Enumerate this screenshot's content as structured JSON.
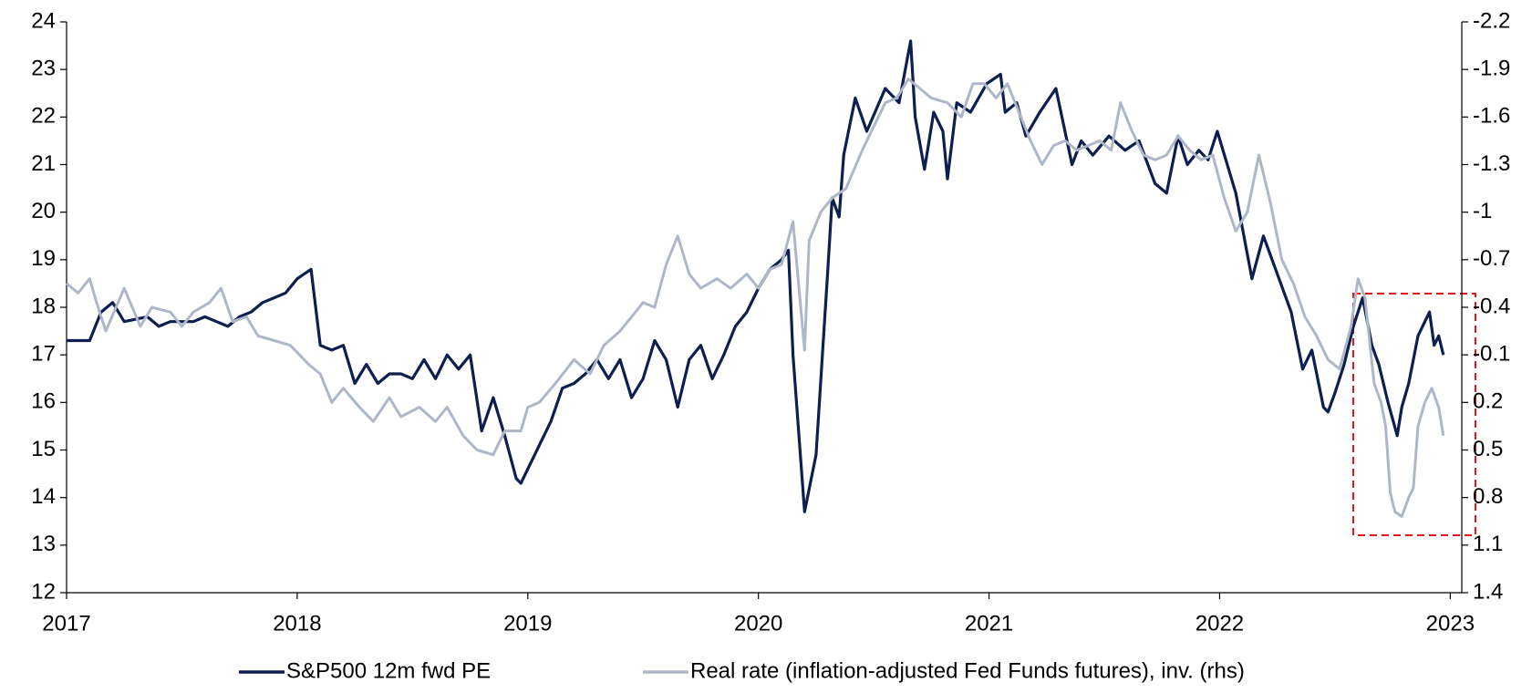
{
  "chart_data": {
    "type": "line",
    "xlim": [
      2017,
      2023.05
    ],
    "xticks": [
      2017,
      2018,
      2019,
      2020,
      2021,
      2022,
      2023
    ],
    "ylim": [
      12,
      24
    ],
    "yticks": [
      12,
      13,
      14,
      15,
      16,
      17,
      18,
      19,
      20,
      21,
      22,
      23,
      24
    ],
    "y2lim": [
      1.4,
      -2.2
    ],
    "y2ticks": [
      1.4,
      1.1,
      0.8,
      0.5,
      0.2,
      -0.1,
      -0.4,
      -0.7,
      -1.0,
      -1.3,
      -1.6,
      -1.9,
      -2.2
    ],
    "series": [
      {
        "name": "S&P500 12m fwd PE",
        "color": "#0c1f4f",
        "x": [
          2017.0,
          2017.1,
          2017.15,
          2017.2,
          2017.25,
          2017.35,
          2017.4,
          2017.45,
          2017.5,
          2017.55,
          2017.6,
          2017.65,
          2017.7,
          2017.75,
          2017.8,
          2017.85,
          2017.9,
          2017.95,
          2018.0,
          2018.06,
          2018.1,
          2018.15,
          2018.2,
          2018.25,
          2018.3,
          2018.35,
          2018.4,
          2018.45,
          2018.5,
          2018.55,
          2018.6,
          2018.65,
          2018.7,
          2018.75,
          2018.8,
          2018.85,
          2018.9,
          2018.95,
          2018.97,
          2019.05,
          2019.1,
          2019.15,
          2019.2,
          2019.25,
          2019.3,
          2019.35,
          2019.4,
          2019.45,
          2019.5,
          2019.55,
          2019.6,
          2019.65,
          2019.7,
          2019.75,
          2019.8,
          2019.85,
          2019.9,
          2019.95,
          2020.0,
          2020.05,
          2020.1,
          2020.13,
          2020.15,
          2020.2,
          2020.25,
          2020.3,
          2020.32,
          2020.35,
          2020.37,
          2020.42,
          2020.47,
          2020.55,
          2020.61,
          2020.66,
          2020.68,
          2020.72,
          2020.76,
          2020.8,
          2020.82,
          2020.86,
          2020.92,
          2020.99,
          2021.05,
          2021.07,
          2021.12,
          2021.16,
          2021.22,
          2021.29,
          2021.36,
          2021.4,
          2021.45,
          2021.52,
          2021.59,
          2021.65,
          2021.72,
          2021.77,
          2021.82,
          2021.86,
          2021.91,
          2021.95,
          2021.99,
          2022.07,
          2022.14,
          2022.19,
          2022.31,
          2022.36,
          2022.4,
          2022.45,
          2022.47,
          2022.5,
          2022.54,
          2022.58,
          2022.62,
          2022.66,
          2022.69,
          2022.73,
          2022.77,
          2022.79,
          2022.82,
          2022.86,
          2022.91,
          2022.93,
          2022.95,
          2022.97
        ],
        "values": [
          17.3,
          17.3,
          17.9,
          18.1,
          17.7,
          17.8,
          17.6,
          17.7,
          17.7,
          17.7,
          17.8,
          17.7,
          17.6,
          17.8,
          17.9,
          18.1,
          18.2,
          18.3,
          18.6,
          18.8,
          17.2,
          17.1,
          17.2,
          16.4,
          16.8,
          16.4,
          16.6,
          16.6,
          16.5,
          16.9,
          16.5,
          17.0,
          16.7,
          17.0,
          15.4,
          16.1,
          15.3,
          14.4,
          14.3,
          15.1,
          15.6,
          16.3,
          16.4,
          16.6,
          16.9,
          16.5,
          16.9,
          16.1,
          16.5,
          17.3,
          16.9,
          15.9,
          16.9,
          17.2,
          16.5,
          17.0,
          17.6,
          17.9,
          18.4,
          18.8,
          19.0,
          19.2,
          17.0,
          13.7,
          14.9,
          18.7,
          20.3,
          19.9,
          21.2,
          22.4,
          21.7,
          22.6,
          22.3,
          23.6,
          22.0,
          20.9,
          22.1,
          21.7,
          20.7,
          22.3,
          22.1,
          22.7,
          22.9,
          22.1,
          22.3,
          21.6,
          22.1,
          22.6,
          21.0,
          21.5,
          21.2,
          21.6,
          21.3,
          21.5,
          20.6,
          20.4,
          21.6,
          21.0,
          21.3,
          21.1,
          21.7,
          20.4,
          18.6,
          19.5,
          17.9,
          16.7,
          17.1,
          15.9,
          15.8,
          16.2,
          16.8,
          17.6,
          18.2,
          17.2,
          16.8,
          16.0,
          15.3,
          15.9,
          16.4,
          17.4,
          17.9,
          17.2,
          17.4,
          17.0
        ]
      },
      {
        "name": "Real rate (inflation-adjusted Fed Funds futures), inv. (rhs)",
        "color": "#aeb7c8",
        "axis": "y2",
        "x": [
          2017.0,
          2017.05,
          2017.1,
          2017.13,
          2017.17,
          2017.25,
          2017.32,
          2017.37,
          2017.45,
          2017.5,
          2017.55,
          2017.62,
          2017.67,
          2017.72,
          2017.78,
          2017.83,
          2017.9,
          2017.97,
          2018.05,
          2018.1,
          2018.15,
          2018.2,
          2018.27,
          2018.33,
          2018.4,
          2018.45,
          2018.53,
          2018.6,
          2018.65,
          2018.72,
          2018.78,
          2018.85,
          2018.9,
          2018.97,
          2019.0,
          2019.05,
          2019.12,
          2019.2,
          2019.27,
          2019.33,
          2019.4,
          2019.45,
          2019.5,
          2019.55,
          2019.6,
          2019.65,
          2019.7,
          2019.75,
          2019.82,
          2019.88,
          2019.95,
          2020.0,
          2020.05,
          2020.1,
          2020.15,
          2020.2,
          2020.22,
          2020.27,
          2020.32,
          2020.38,
          2020.45,
          2020.5,
          2020.55,
          2020.6,
          2020.65,
          2020.7,
          2020.75,
          2020.82,
          2020.88,
          2020.93,
          2020.98,
          2021.03,
          2021.08,
          2021.13,
          2021.18,
          2021.23,
          2021.28,
          2021.33,
          2021.38,
          2021.43,
          2021.48,
          2021.53,
          2021.57,
          2021.62,
          2021.67,
          2021.72,
          2021.77,
          2021.82,
          2021.87,
          2021.92,
          2021.97,
          2022.02,
          2022.07,
          2022.12,
          2022.17,
          2022.22,
          2022.27,
          2022.32,
          2022.37,
          2022.42,
          2022.47,
          2022.52,
          2022.57,
          2022.6,
          2022.63,
          2022.67,
          2022.7,
          2022.72,
          2022.74,
          2022.76,
          2022.79,
          2022.82,
          2022.84,
          2022.86,
          2022.89,
          2022.92,
          2022.95,
          2022.97
        ],
        "values": [
          -0.55,
          -0.49,
          -0.58,
          -0.43,
          -0.25,
          -0.52,
          -0.28,
          -0.4,
          -0.37,
          -0.28,
          -0.37,
          -0.43,
          -0.52,
          -0.31,
          -0.34,
          -0.22,
          -0.19,
          -0.16,
          -0.04,
          0.02,
          0.2,
          0.11,
          0.23,
          0.32,
          0.17,
          0.29,
          0.23,
          0.32,
          0.23,
          0.41,
          0.5,
          0.53,
          0.38,
          0.38,
          0.23,
          0.2,
          0.08,
          -0.07,
          0.02,
          -0.16,
          -0.25,
          -0.34,
          -0.43,
          -0.4,
          -0.67,
          -0.85,
          -0.61,
          -0.52,
          -0.58,
          -0.52,
          -0.61,
          -0.52,
          -0.64,
          -0.67,
          -0.94,
          -0.13,
          -0.82,
          -1.0,
          -1.09,
          -1.15,
          -1.39,
          -1.54,
          -1.69,
          -1.72,
          -1.84,
          -1.78,
          -1.72,
          -1.69,
          -1.6,
          -1.81,
          -1.81,
          -1.72,
          -1.81,
          -1.63,
          -1.45,
          -1.3,
          -1.42,
          -1.45,
          -1.39,
          -1.42,
          -1.45,
          -1.39,
          -1.69,
          -1.51,
          -1.36,
          -1.33,
          -1.36,
          -1.48,
          -1.39,
          -1.33,
          -1.36,
          -1.09,
          -0.88,
          -1.0,
          -1.36,
          -1.06,
          -0.7,
          -0.55,
          -0.34,
          -0.22,
          -0.07,
          -0.01,
          -0.28,
          -0.58,
          -0.46,
          0.08,
          0.2,
          0.35,
          0.77,
          0.89,
          0.92,
          0.8,
          0.74,
          0.35,
          0.2,
          0.11,
          0.23,
          0.41
        ]
      }
    ]
  }
}
